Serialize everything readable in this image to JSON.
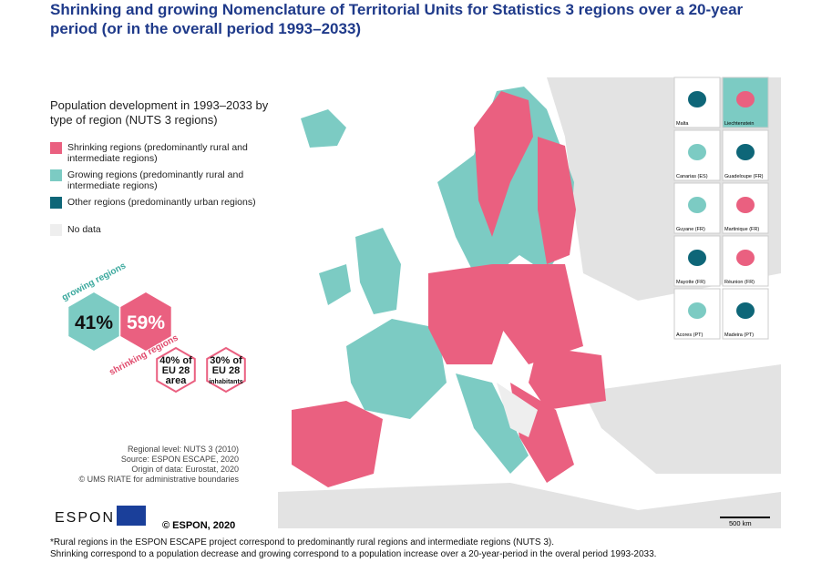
{
  "header": {
    "title": "Shrinking and growing Nomenclature of Territorial Units for Statistics 3 regions over a 20-year period (or in the overall period 1993–2033)"
  },
  "legend": {
    "title": "Population development in 1993–2033 by type of region (NUTS 3 regions)",
    "items": [
      {
        "label": "Shrinking regions (predominantly rural and intermediate regions)",
        "color": "#ea6080"
      },
      {
        "label": "Growing regions (predominantly rural and intermediate regions)",
        "color": "#7ccbc3"
      },
      {
        "label": "Other regions (predominantly urban regions)",
        "color": "#0e6678"
      },
      {
        "label": "No data",
        "color": "#eeeeee"
      }
    ]
  },
  "stats": {
    "growing_label": "growing regions",
    "growing_value": "41%",
    "shrinking_label": "shrinking regions",
    "shrinking_value": "59%",
    "area": [
      "40% of",
      "EU 28",
      "area"
    ],
    "inhabitants": [
      "30% of",
      "EU 28",
      "inhabitants"
    ]
  },
  "sources": [
    "Regional level: NUTS 3 (2010)",
    "Source: ESPON ESCAPE, 2020",
    "Origin of data: Eurostat, 2020",
    "© UMS RIATE for administrative boundaries"
  ],
  "insets": [
    "Malta",
    "Liechtenstein",
    "Canarias (ES)",
    "Guadeloupe (FR)",
    "Guyane (FR)",
    "Martinique (FR)",
    "Mayotte (FR)",
    "Réunion (FR)",
    "Acores (PT)",
    "Madeira (PT)"
  ],
  "scale": "500 km",
  "logo": "ESPON",
  "copyright": "© ESPON, 2020",
  "footnotes": [
    "*Rural regions in the ESPON ESCAPE project correspond to predominantly rural regions and intermediate regions (NUTS 3).",
    "Shrinking correspond to a population decrease and growing correspond to a population increase over a 20-year-period in the overal period 1993-2033."
  ]
}
